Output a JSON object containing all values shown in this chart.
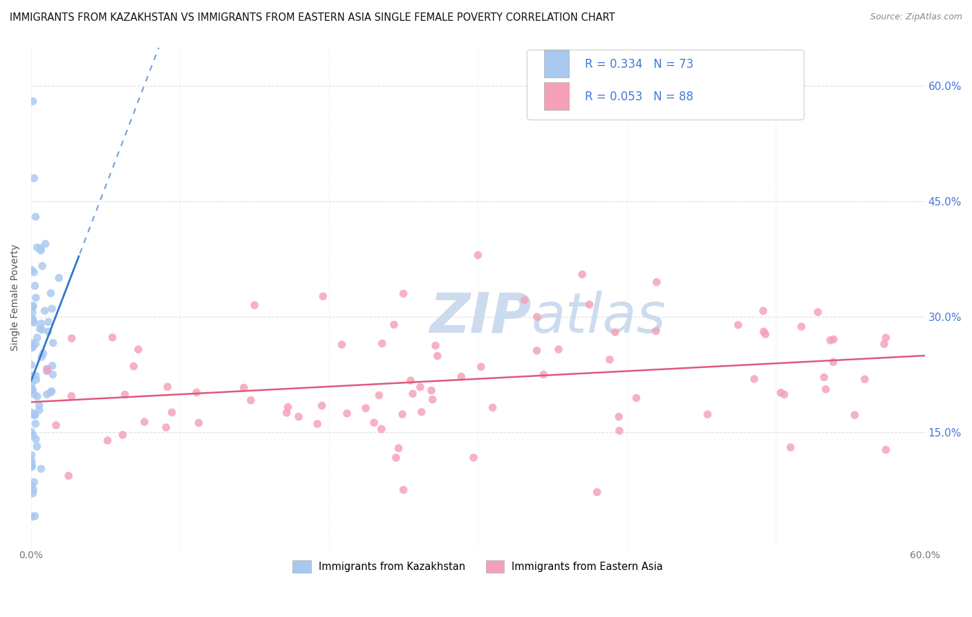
{
  "title": "IMMIGRANTS FROM KAZAKHSTAN VS IMMIGRANTS FROM EASTERN ASIA SINGLE FEMALE POVERTY CORRELATION CHART",
  "source": "Source: ZipAtlas.com",
  "ylabel": "Single Female Poverty",
  "ytick_labels": [
    "15.0%",
    "30.0%",
    "45.0%",
    "60.0%"
  ],
  "ytick_values": [
    0.15,
    0.3,
    0.45,
    0.6
  ],
  "xlim": [
    0.0,
    0.6
  ],
  "ylim": [
    0.0,
    0.65
  ],
  "legend_label1": "Immigrants from Kazakhstan",
  "legend_label2": "Immigrants from Eastern Asia",
  "R1": "0.334",
  "N1": "73",
  "R2": "0.053",
  "N2": "88",
  "color_kaz": "#a8c8f0",
  "color_kaz_line": "#3377cc",
  "color_east": "#f5a0b8",
  "color_east_line": "#e05878",
  "color_axis_label": "#4477dd",
  "watermark_color": "#c8d8ee",
  "background_color": "#ffffff",
  "title_fontsize": 10.5,
  "source_fontsize": 9,
  "seed": 99
}
